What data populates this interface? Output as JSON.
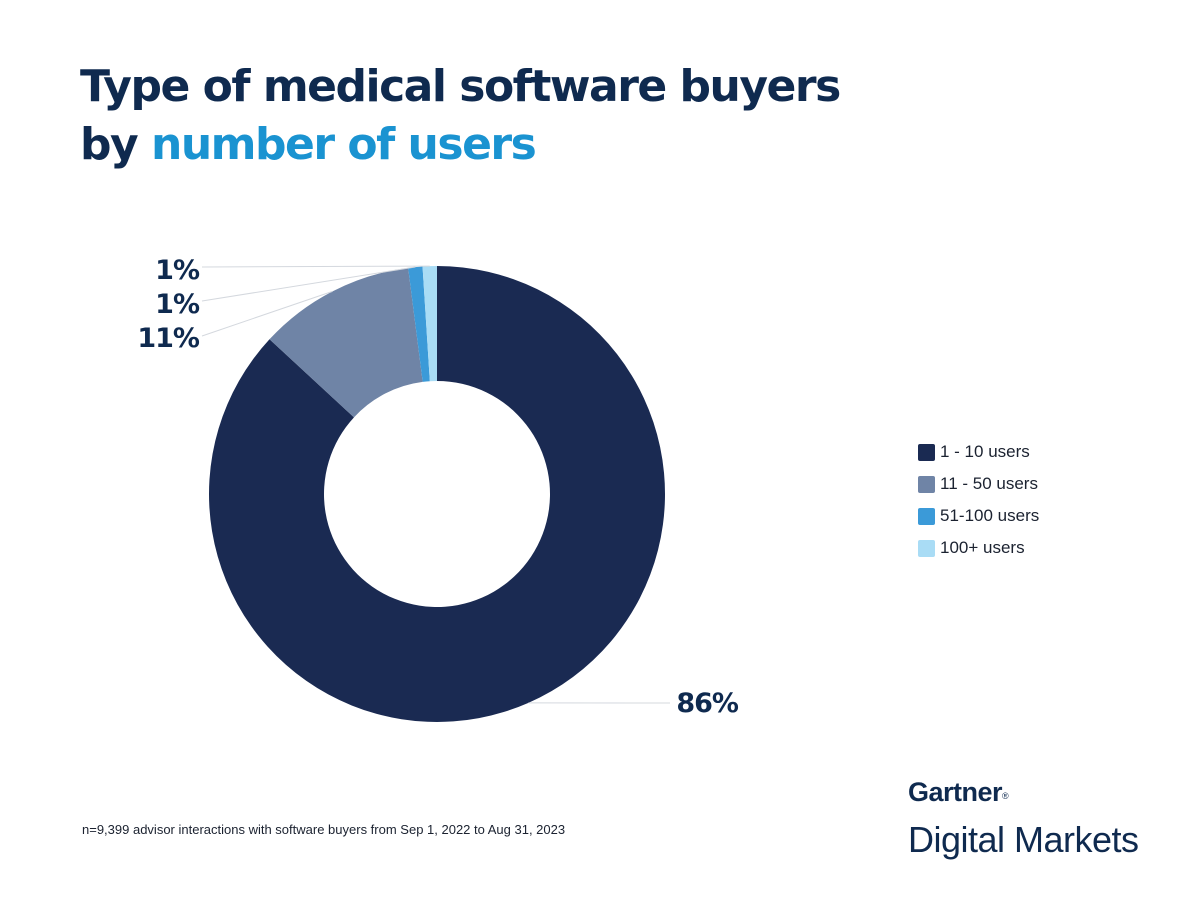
{
  "title": {
    "line1": "Type of medical software buyers",
    "line2_prefix": "by",
    "line2_accent": "number of users"
  },
  "chart_data": {
    "type": "donut",
    "categories": [
      "1 - 10 users",
      "11 - 50 users",
      "51-100 users",
      "100+ users"
    ],
    "values": [
      86,
      11,
      1,
      1
    ],
    "labels": [
      "86%",
      "11%",
      "1%",
      "1%"
    ],
    "colors": [
      "#1a2a52",
      "#6f84a6",
      "#3b9ad8",
      "#a9dcf5"
    ],
    "legend_position": "right"
  },
  "footnote": "n=9,399 advisor interactions with software buyers from Sep 1, 2022 to Aug 31, 2023",
  "brand": {
    "name": "Gartner",
    "registered": "®",
    "product": "Digital Markets"
  }
}
